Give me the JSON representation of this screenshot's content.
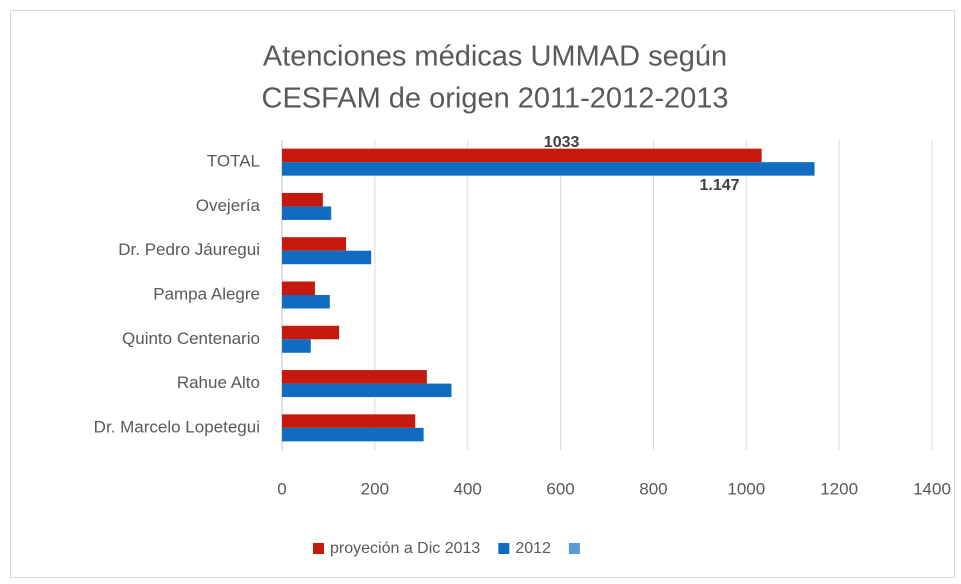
{
  "chart_data": {
    "type": "bar",
    "orientation": "horizontal",
    "title": [
      "Atenciones médicas UMMAD según",
      "CESFAM  de  origen  2011-2012-2013"
    ],
    "categories": [
      "TOTAL",
      "Ovejería",
      "Dr. Pedro Jáuregui",
      "Pampa Alegre",
      "Quinto Centenario",
      "Rahue Alto",
      "Dr. Marcelo Lopetegui"
    ],
    "series": [
      {
        "name": "proyeción a Dic 2013",
        "color": "#c4190c",
        "values": [
          1033,
          88,
          138,
          71,
          123,
          312,
          287
        ],
        "value_labels": [
          "1033",
          null,
          null,
          null,
          null,
          null,
          null
        ]
      },
      {
        "name": "2012",
        "color": "#0f6cc1",
        "values": [
          1147,
          106,
          192,
          103,
          62,
          365,
          305
        ],
        "value_labels": [
          "1.147",
          null,
          null,
          null,
          null,
          null,
          null
        ]
      }
    ],
    "xlim": [
      0,
      1400
    ],
    "xticks": [
      0,
      200,
      400,
      600,
      800,
      1000,
      1200,
      1400
    ],
    "grid": true,
    "legend": "bottom"
  }
}
